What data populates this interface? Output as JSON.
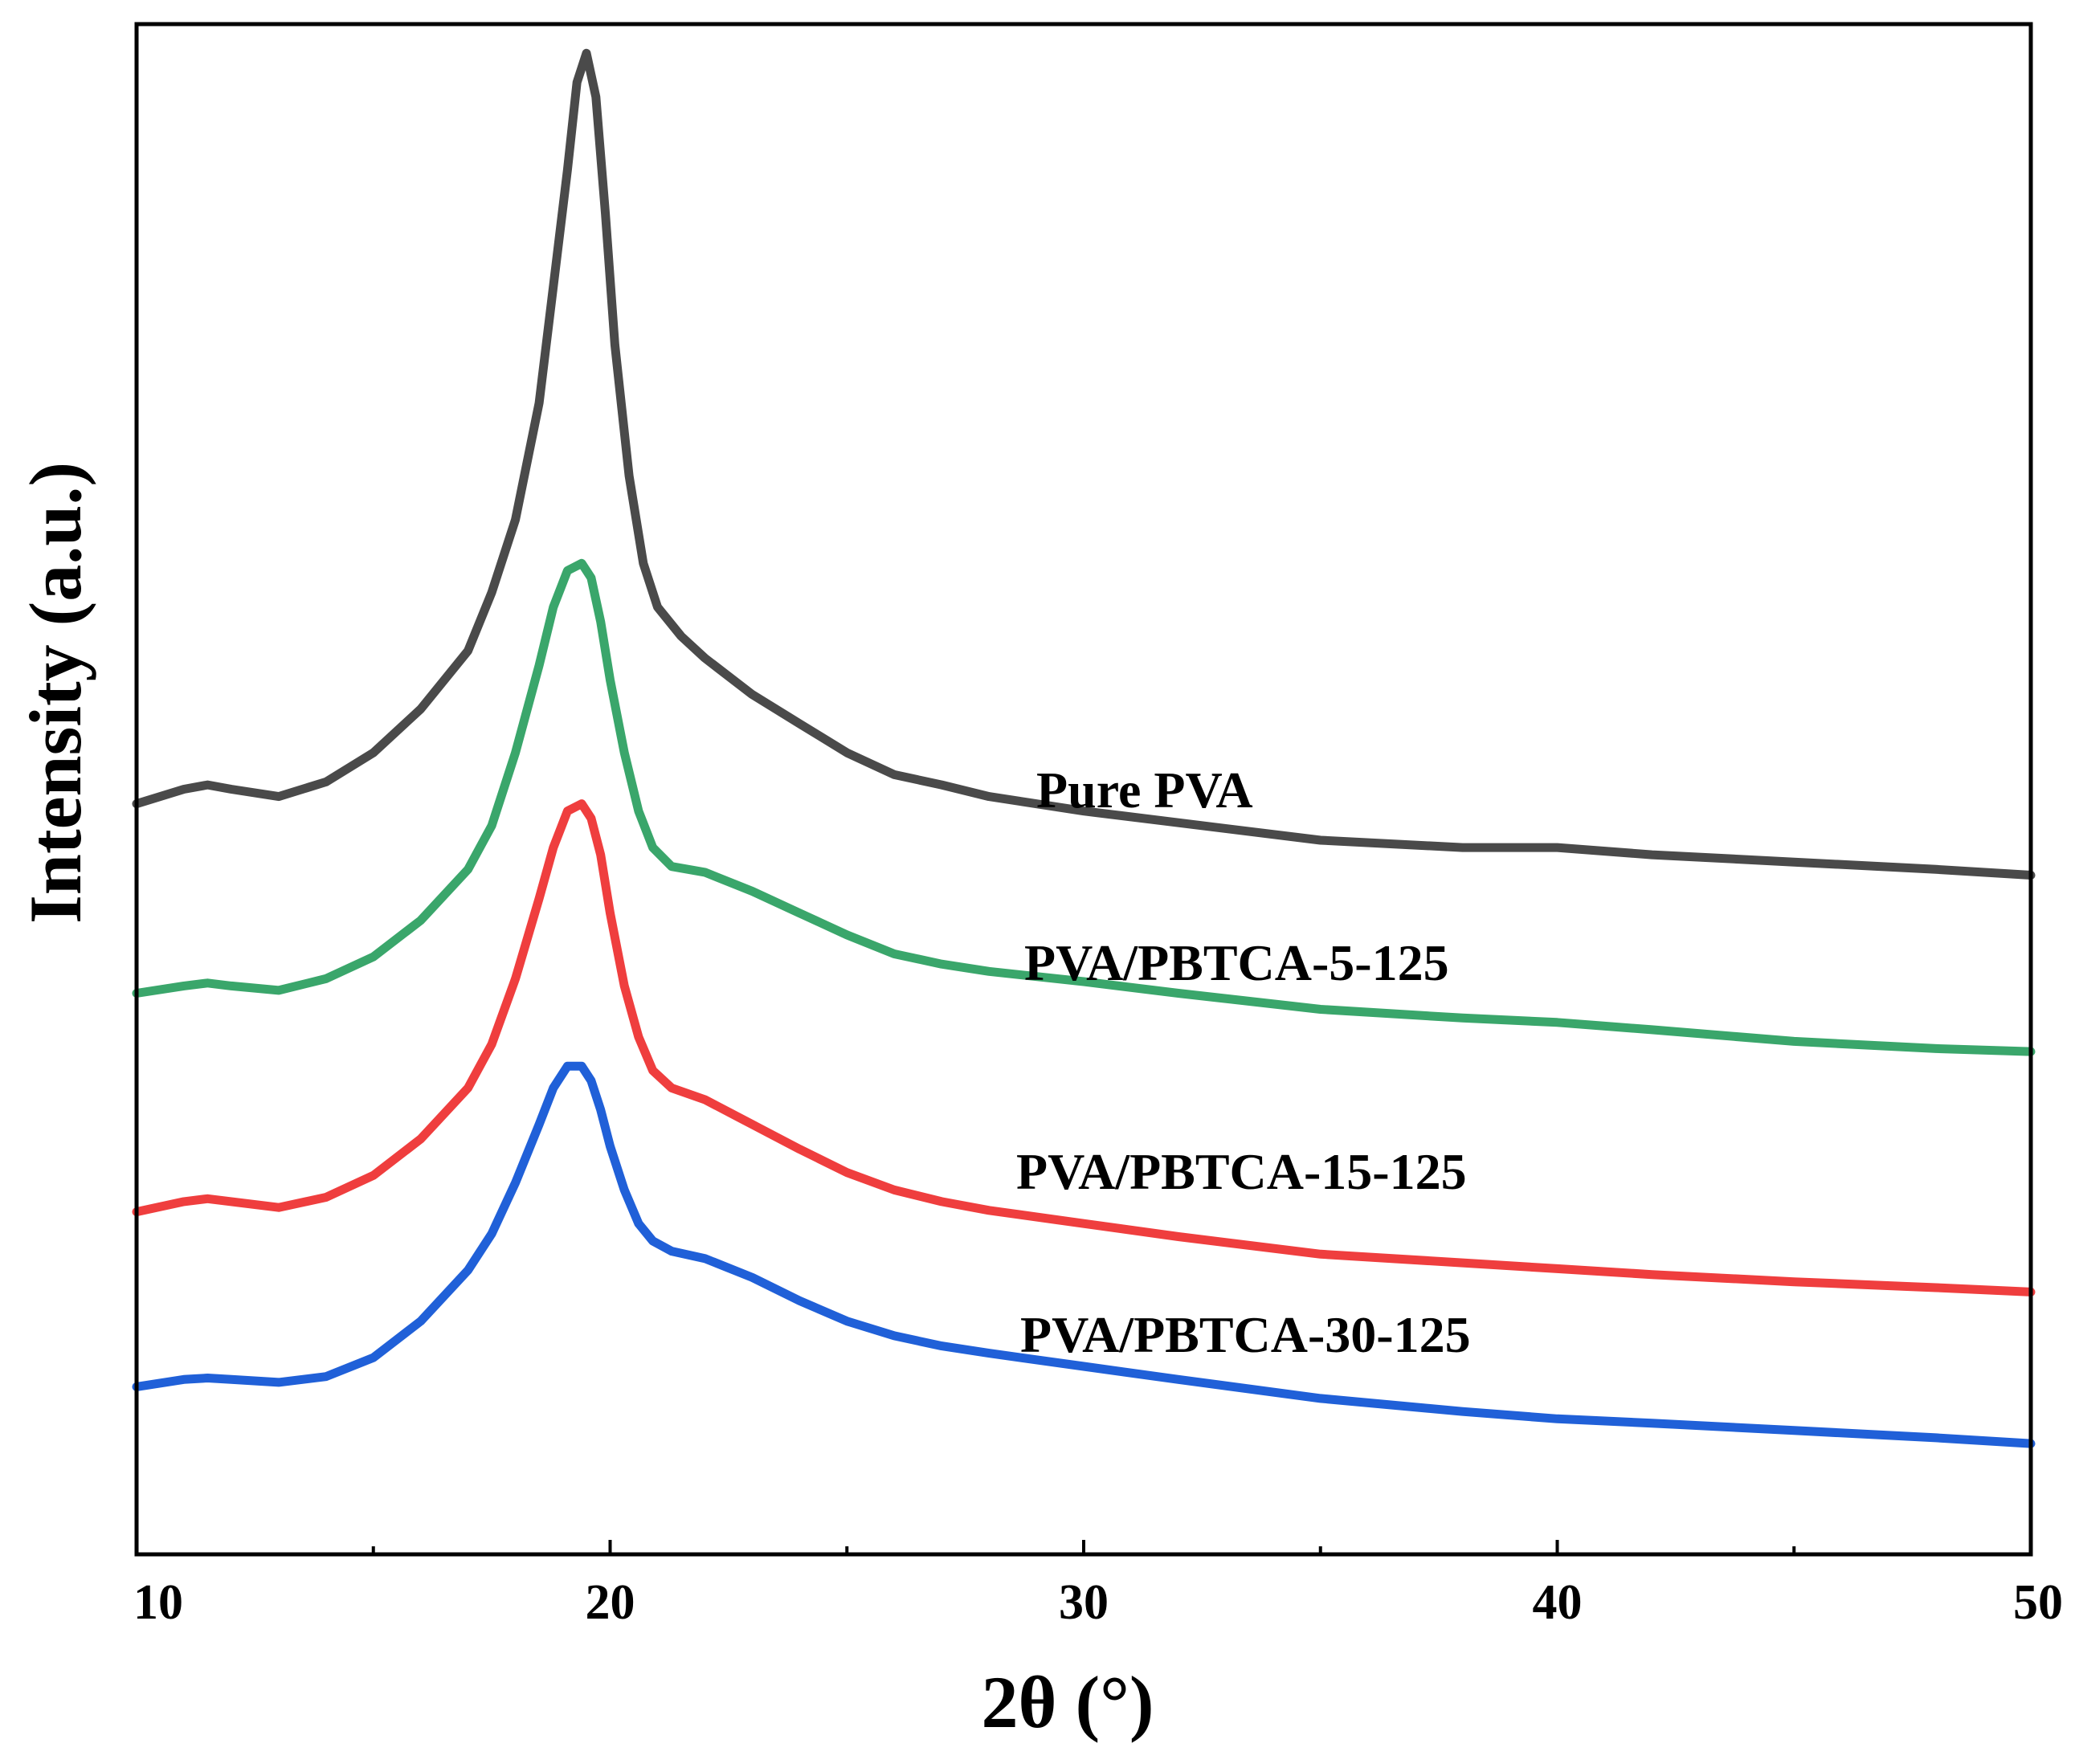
{
  "chart_data": {
    "type": "line",
    "title": "",
    "xlabel": "2θ (°)",
    "ylabel": "Intensity (a.u.)",
    "xlim": [
      10,
      50
    ],
    "ylim": [
      0,
      10.5
    ],
    "x_ticks": [
      10,
      20,
      30,
      40,
      50
    ],
    "x_minor_ticks": [
      15,
      25,
      35,
      45
    ],
    "y_ticks_shown": false,
    "grid": false,
    "legend": "inline labels to the right of each curve",
    "series": [
      {
        "name": "Pure PVA",
        "color": "#4a4a4a",
        "x": [
          10,
          11,
          11.5,
          12,
          13,
          14,
          15,
          16,
          17,
          17.5,
          18,
          18.5,
          18.8,
          19.1,
          19.3,
          19.5,
          19.7,
          19.9,
          20.1,
          20.4,
          20.7,
          21,
          21.5,
          22,
          23,
          24,
          25,
          26,
          27,
          28,
          30,
          32,
          35,
          38,
          40,
          42,
          45,
          48,
          50
        ],
        "y": [
          5.15,
          5.25,
          5.28,
          5.25,
          5.2,
          5.3,
          5.5,
          5.8,
          6.2,
          6.6,
          7.1,
          7.9,
          8.7,
          9.5,
          10.1,
          10.3,
          10.0,
          9.2,
          8.3,
          7.4,
          6.8,
          6.5,
          6.3,
          6.15,
          5.9,
          5.7,
          5.5,
          5.35,
          5.28,
          5.2,
          5.1,
          5.02,
          4.9,
          4.85,
          4.85,
          4.8,
          4.75,
          4.7,
          4.66
        ]
      },
      {
        "name": "PVA/PBTCA-5-125",
        "color": "#3aa66b",
        "x": [
          10,
          11,
          11.5,
          12,
          13,
          14,
          15,
          16,
          17,
          17.5,
          18,
          18.5,
          18.8,
          19.1,
          19.4,
          19.6,
          19.8,
          20,
          20.3,
          20.6,
          20.9,
          21.3,
          22,
          23,
          24,
          25,
          26,
          27,
          28,
          30,
          32,
          35,
          38,
          40,
          42,
          45,
          48,
          50
        ],
        "y": [
          3.85,
          3.9,
          3.92,
          3.9,
          3.87,
          3.95,
          4.1,
          4.35,
          4.7,
          5.0,
          5.5,
          6.1,
          6.5,
          6.75,
          6.8,
          6.7,
          6.4,
          6.0,
          5.5,
          5.1,
          4.85,
          4.72,
          4.68,
          4.55,
          4.4,
          4.25,
          4.12,
          4.05,
          4.0,
          3.93,
          3.85,
          3.74,
          3.68,
          3.65,
          3.6,
          3.52,
          3.47,
          3.45
        ]
      },
      {
        "name": "PVA/PBTCA-15-125",
        "color": "#ef3e3e",
        "x": [
          10,
          11,
          11.5,
          12,
          13,
          14,
          15,
          16,
          17,
          17.5,
          18,
          18.5,
          18.8,
          19.1,
          19.4,
          19.6,
          19.8,
          20,
          20.3,
          20.6,
          20.9,
          21.3,
          22,
          23,
          24,
          25,
          26,
          27,
          28,
          30,
          32,
          35,
          38,
          40,
          42,
          45,
          48,
          50
        ],
        "y": [
          2.35,
          2.42,
          2.44,
          2.42,
          2.38,
          2.45,
          2.6,
          2.85,
          3.2,
          3.5,
          3.95,
          4.5,
          4.85,
          5.1,
          5.15,
          5.05,
          4.8,
          4.4,
          3.9,
          3.55,
          3.32,
          3.2,
          3.12,
          2.95,
          2.78,
          2.62,
          2.5,
          2.42,
          2.36,
          2.27,
          2.18,
          2.06,
          2.0,
          1.96,
          1.92,
          1.87,
          1.83,
          1.8
        ]
      },
      {
        "name": "PVA/PBTCA-30-125",
        "color": "#2060d8",
        "x": [
          10,
          11,
          11.5,
          12,
          13,
          14,
          15,
          16,
          17,
          17.5,
          18,
          18.5,
          18.8,
          19.1,
          19.4,
          19.6,
          19.8,
          20,
          20.3,
          20.6,
          20.9,
          21.3,
          22,
          23,
          24,
          25,
          26,
          27,
          28,
          30,
          32,
          35,
          38,
          40,
          42,
          45,
          48,
          50
        ],
        "y": [
          1.15,
          1.2,
          1.21,
          1.2,
          1.18,
          1.22,
          1.35,
          1.6,
          1.95,
          2.2,
          2.55,
          2.95,
          3.2,
          3.35,
          3.35,
          3.25,
          3.05,
          2.8,
          2.5,
          2.27,
          2.15,
          2.08,
          2.03,
          1.9,
          1.74,
          1.6,
          1.5,
          1.43,
          1.38,
          1.29,
          1.2,
          1.07,
          0.98,
          0.93,
          0.9,
          0.85,
          0.8,
          0.76
        ]
      }
    ],
    "annotations": [
      {
        "text": "Pure PVA",
        "series": 0
      },
      {
        "text": "PVA/PBTCA-5-125",
        "series": 1
      },
      {
        "text": "PVA/PBTCA-15-125",
        "series": 2
      },
      {
        "text": "PVA/PBTCA-30-125",
        "series": 3
      }
    ]
  }
}
